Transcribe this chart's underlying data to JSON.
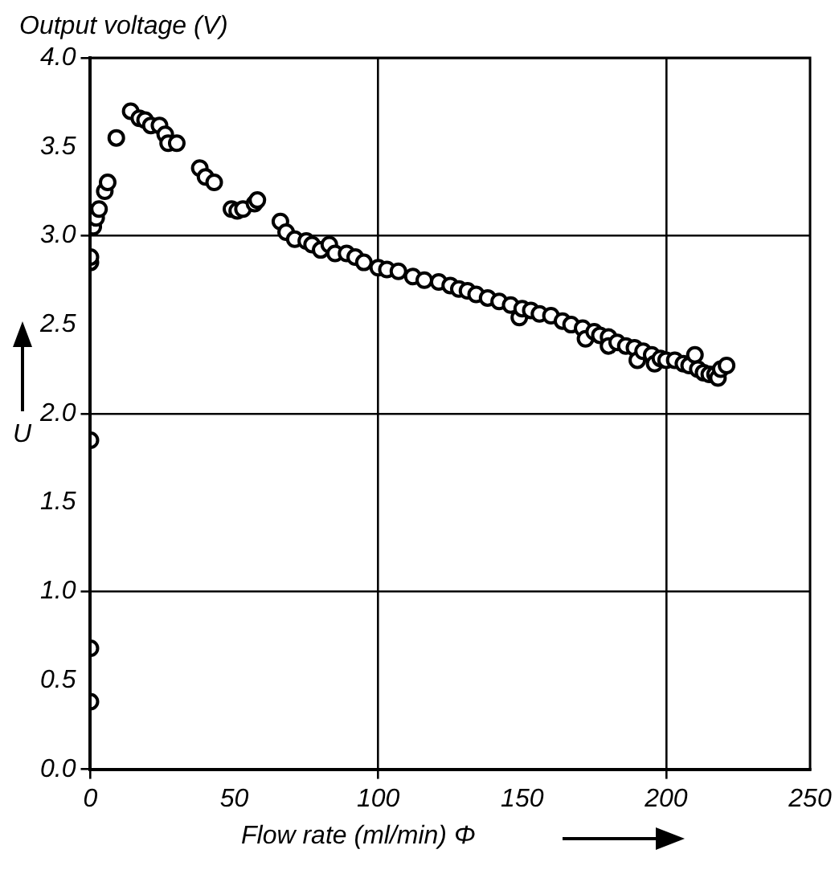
{
  "chart_data": {
    "type": "scatter",
    "title": "Output voltage (V)",
    "xlabel": "Flow rate (ml/min) Φ",
    "ylabel": "U",
    "x": [
      0,
      0,
      0,
      0,
      0,
      1,
      2,
      3,
      5,
      6,
      9,
      14,
      17,
      19,
      21,
      24,
      26,
      27,
      30,
      38,
      40,
      43,
      49,
      51,
      53,
      57,
      58,
      66,
      68,
      71,
      75,
      77,
      80,
      83,
      85,
      89,
      92,
      95,
      100,
      103,
      107,
      112,
      116,
      121,
      125,
      128,
      131,
      134,
      138,
      142,
      146,
      149,
      150,
      153,
      156,
      160,
      164,
      167,
      171,
      172,
      175,
      177,
      180,
      180,
      183,
      186,
      189,
      190,
      192,
      195,
      196,
      198,
      200,
      203,
      206,
      208,
      210,
      211,
      213,
      215,
      217,
      218,
      219,
      221
    ],
    "values": [
      0.38,
      0.68,
      1.85,
      2.85,
      2.88,
      3.05,
      3.1,
      3.15,
      3.25,
      3.3,
      3.55,
      3.7,
      3.66,
      3.65,
      3.62,
      3.62,
      3.57,
      3.52,
      3.52,
      3.38,
      3.33,
      3.3,
      3.15,
      3.14,
      3.15,
      3.18,
      3.2,
      3.08,
      3.02,
      2.98,
      2.97,
      2.95,
      2.92,
      2.95,
      2.9,
      2.9,
      2.88,
      2.85,
      2.82,
      2.81,
      2.8,
      2.77,
      2.75,
      2.74,
      2.72,
      2.7,
      2.69,
      2.67,
      2.65,
      2.63,
      2.61,
      2.54,
      2.59,
      2.58,
      2.56,
      2.55,
      2.52,
      2.5,
      2.48,
      2.42,
      2.46,
      2.44,
      2.43,
      2.38,
      2.4,
      2.38,
      2.37,
      2.3,
      2.35,
      2.33,
      2.28,
      2.31,
      2.3,
      2.3,
      2.28,
      2.27,
      2.33,
      2.25,
      2.23,
      2.22,
      2.22,
      2.2,
      2.25,
      2.27
    ],
    "color": "#000000",
    "marker": "circle",
    "grid": true,
    "xlim": [
      0,
      250
    ],
    "xticks": [
      0,
      50,
      100,
      150,
      200,
      250
    ],
    "ylim": [
      0,
      4
    ],
    "yticks": [
      {
        "value": 0,
        "label": "0.0"
      },
      {
        "value": 0.5,
        "label": "0.5"
      },
      {
        "value": 1,
        "label": "1.0"
      },
      {
        "value": 1.5,
        "label": "1.5"
      },
      {
        "value": 2,
        "label": "2.0"
      },
      {
        "value": 2.5,
        "label": "2.5"
      },
      {
        "value": 3,
        "label": "3.0"
      },
      {
        "value": 3.5,
        "label": "3.5"
      },
      {
        "value": 4,
        "label": "4.0"
      }
    ]
  }
}
